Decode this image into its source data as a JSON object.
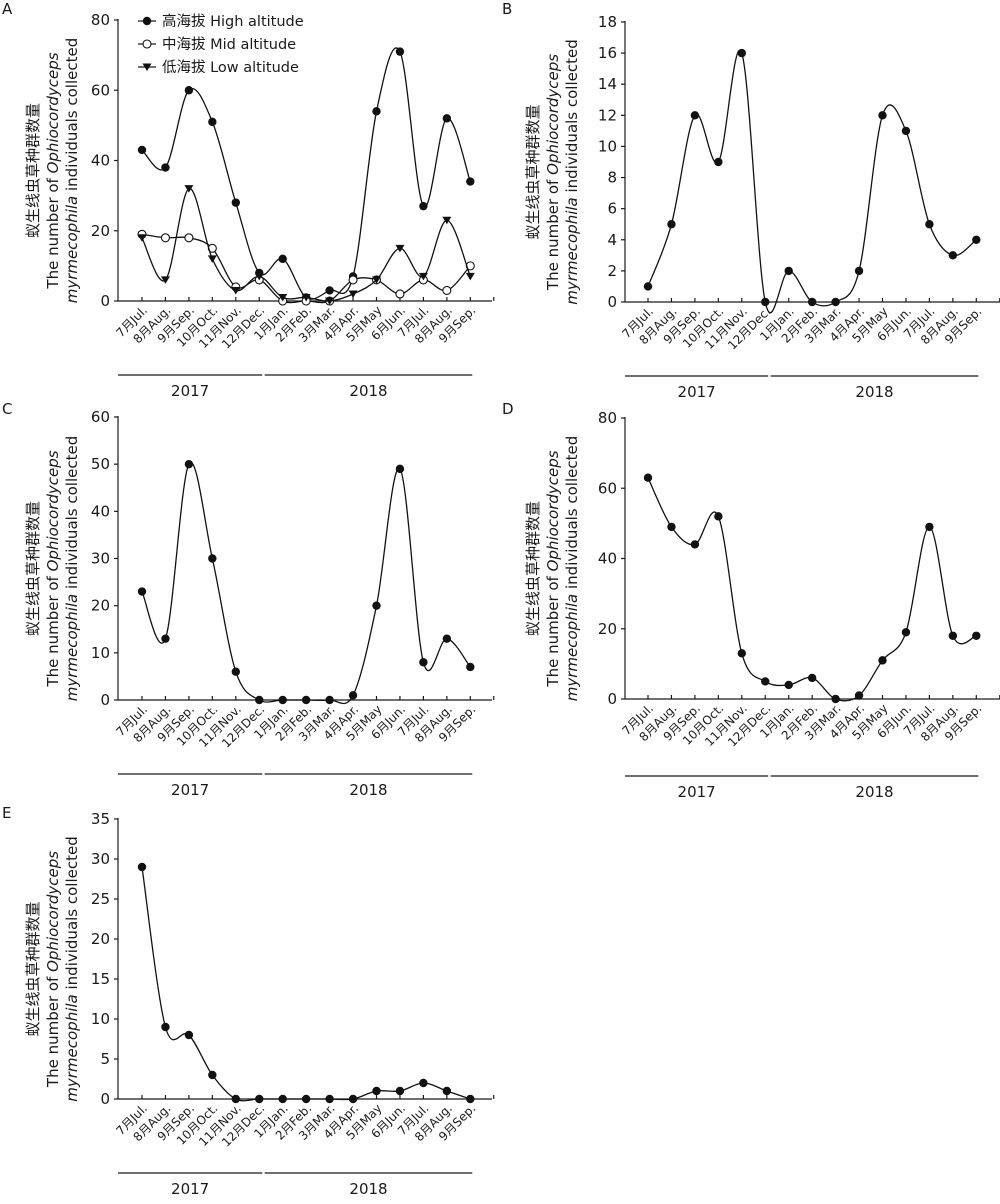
{
  "figure": {
    "ylabel_cn": "蚁生线虫草种群数量",
    "ylabel_en_prefix": "The number of ",
    "ylabel_en_italic": "Ophiocordyceps",
    "ylabel_en_line2_italic": "myrmecophila",
    "ylabel_en_line2_rest": " individuals collected",
    "years": [
      "2017",
      "2018"
    ]
  },
  "chart_data": [
    {
      "panel": "A",
      "type": "line",
      "title": "",
      "xlabel": "",
      "ylabel": "蚁生线虫草种群数量 The number of Ophiocordyceps myrmecophila individuals collected",
      "categories": [
        "7月Jul.",
        "8月Aug.",
        "9月Sep.",
        "10月Oct.",
        "11月Nov.",
        "12月Dec.",
        "1月Jan.",
        "2月Feb.",
        "3月Mar.",
        "4月Apr.",
        "5月May",
        "6月Jun.",
        "7月Jul.",
        "8月Aug.",
        "9月Sep."
      ],
      "year_groups": [
        {
          "label": "2017",
          "from": 0,
          "to": 5
        },
        {
          "label": "2018",
          "from": 6,
          "to": 14
        }
      ],
      "ylim": [
        0,
        80
      ],
      "yticks": [
        0,
        20,
        40,
        60,
        80
      ],
      "grid": false,
      "legend_position": "top-left",
      "series": [
        {
          "name": "高海拔 High altitude",
          "marker": "filled-circle",
          "values": [
            43,
            38,
            60,
            51,
            28,
            8,
            12,
            1,
            3,
            7,
            54,
            71,
            27,
            52,
            34
          ]
        },
        {
          "name": "中海拔 Mid altitude",
          "marker": "open-circle",
          "values": [
            19,
            18,
            18,
            15,
            4,
            6,
            0,
            0,
            0,
            6,
            6,
            2,
            6,
            3,
            10
          ]
        },
        {
          "name": "低海拔 Low altitude",
          "marker": "filled-triangle-down",
          "values": [
            18,
            6,
            32,
            12,
            3,
            7,
            1,
            1,
            0,
            2,
            6,
            15,
            7,
            23,
            7
          ]
        }
      ]
    },
    {
      "panel": "B",
      "type": "line",
      "title": "",
      "xlabel": "",
      "ylabel": "蚁生线虫草种群数量 The number of Ophiocordyceps myrmecophila individuals collected",
      "categories": [
        "7月Jul.",
        "8月Aug.",
        "9月Sep.",
        "10月Oct.",
        "11月Nov.",
        "12月Dec.",
        "1月Jan.",
        "2月Feb.",
        "3月Mar.",
        "4月Apr.",
        "5月May",
        "6月Jun.",
        "7月Jul.",
        "8月Aug.",
        "9月Sep."
      ],
      "year_groups": [
        {
          "label": "2017",
          "from": 0,
          "to": 5
        },
        {
          "label": "2018",
          "from": 6,
          "to": 14
        }
      ],
      "ylim": [
        0,
        18
      ],
      "yticks": [
        0,
        2,
        4,
        6,
        8,
        10,
        12,
        14,
        16,
        18
      ],
      "grid": false,
      "series": [
        {
          "name": "B",
          "marker": "filled-circle",
          "values": [
            1,
            5,
            12,
            9,
            16,
            0,
            2,
            0,
            0,
            2,
            12,
            11,
            5,
            3,
            4
          ]
        }
      ]
    },
    {
      "panel": "C",
      "type": "line",
      "title": "",
      "xlabel": "",
      "ylabel": "蚁生线虫草种群数量 The number of Ophiocordyceps myrmecophila individuals collected",
      "categories": [
        "7月Jul.",
        "8月Aug.",
        "9月Sep.",
        "10月Oct.",
        "11月Nov.",
        "12月Dec.",
        "1月Jan.",
        "2月Feb.",
        "3月Mar.",
        "4月Apr.",
        "5月May",
        "6月Jun.",
        "7月Jul.",
        "8月Aug.",
        "9月Sep."
      ],
      "year_groups": [
        {
          "label": "2017",
          "from": 0,
          "to": 5
        },
        {
          "label": "2018",
          "from": 6,
          "to": 14
        }
      ],
      "ylim": [
        0,
        60
      ],
      "yticks": [
        0,
        10,
        20,
        30,
        40,
        50,
        60
      ],
      "grid": false,
      "series": [
        {
          "name": "C",
          "marker": "filled-circle",
          "values": [
            23,
            13,
            50,
            30,
            6,
            0,
            0,
            0,
            0,
            1,
            20,
            49,
            8,
            13,
            7
          ]
        }
      ]
    },
    {
      "panel": "D",
      "type": "line",
      "title": "",
      "xlabel": "",
      "ylabel": "蚁生线虫草种群数量 The number of Ophiocordyceps myrmecophila individuals collected",
      "categories": [
        "7月Jul.",
        "8月Aug.",
        "9月Sep.",
        "10月Oct.",
        "11月Nov.",
        "12月Dec.",
        "1月Jan.",
        "2月Feb.",
        "3月Mar.",
        "4月Apr.",
        "5月May",
        "6月Jun.",
        "7月Jul.",
        "8月Aug.",
        "9月Sep."
      ],
      "year_groups": [
        {
          "label": "2017",
          "from": 0,
          "to": 5
        },
        {
          "label": "2018",
          "from": 6,
          "to": 14
        }
      ],
      "ylim": [
        0,
        80
      ],
      "yticks": [
        0,
        20,
        40,
        60,
        80
      ],
      "grid": false,
      "series": [
        {
          "name": "D",
          "marker": "filled-circle",
          "values": [
            63,
            49,
            44,
            52,
            13,
            5,
            4,
            6,
            0,
            1,
            11,
            19,
            49,
            18,
            18
          ]
        }
      ]
    },
    {
      "panel": "E",
      "type": "line",
      "title": "",
      "xlabel": "",
      "ylabel": "蚁生线虫草种群数量 The number of Ophiocordyceps myrmecophila individuals collected",
      "categories": [
        "7月Jul.",
        "8月Aug.",
        "9月Sep.",
        "10月Oct.",
        "11月Nov.",
        "12月Dec.",
        "1月Jan.",
        "2月Feb.",
        "3月Mar.",
        "4月Apr.",
        "5月May",
        "6月Jun.",
        "7月Jul.",
        "8月Aug.",
        "9月Sep."
      ],
      "year_groups": [
        {
          "label": "2017",
          "from": 0,
          "to": 5
        },
        {
          "label": "2018",
          "from": 6,
          "to": 14
        }
      ],
      "ylim": [
        0,
        35
      ],
      "yticks": [
        0,
        5,
        10,
        15,
        20,
        25,
        30,
        35
      ],
      "grid": false,
      "series": [
        {
          "name": "E",
          "marker": "filled-circle",
          "values": [
            29,
            9,
            8,
            3,
            0,
            0,
            0,
            0,
            0,
            0,
            1,
            1,
            2,
            1,
            0
          ]
        }
      ]
    }
  ]
}
